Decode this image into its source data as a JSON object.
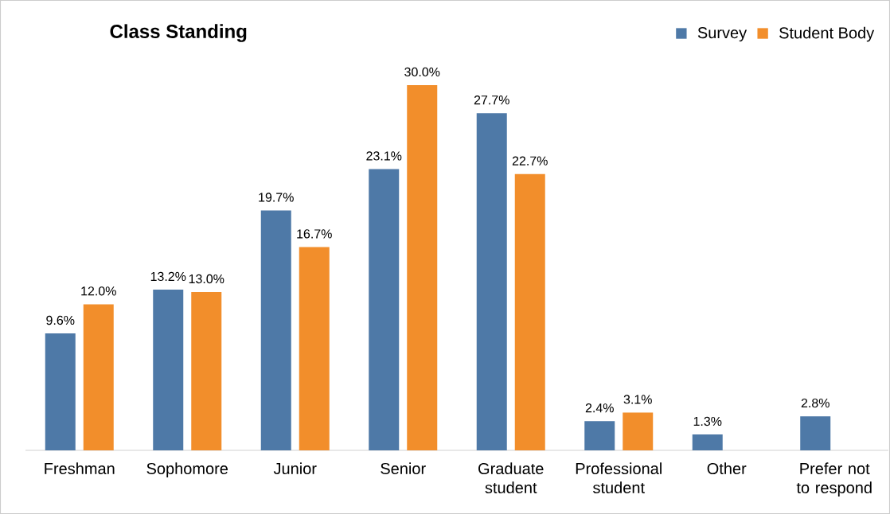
{
  "chart_data": {
    "type": "bar",
    "title": "Class Standing",
    "categories": [
      "Freshman",
      "Sophomore",
      "Junior",
      "Senior",
      "Graduate student",
      "Professional student",
      "Other",
      "Prefer not to respond"
    ],
    "legend": "top right",
    "series": [
      {
        "name": "Survey",
        "color": "#4e79a7",
        "values": [
          9.6,
          13.2,
          19.7,
          23.1,
          27.7,
          2.4,
          1.3,
          2.8
        ],
        "value_labels": [
          "9.6%",
          "13.2%",
          "19.7%",
          "23.1%",
          "27.7%",
          "2.4%",
          "1.3%",
          "2.8%"
        ]
      },
      {
        "name": "Student Body",
        "color": "#f28e2b",
        "values": [
          12.0,
          13.0,
          16.7,
          30.0,
          22.7,
          3.1,
          null,
          null
        ],
        "value_labels": [
          "12.0%",
          "13.0%",
          "16.7%",
          "30.0%",
          "22.7%",
          "3.1%",
          null,
          null
        ]
      }
    ]
  }
}
